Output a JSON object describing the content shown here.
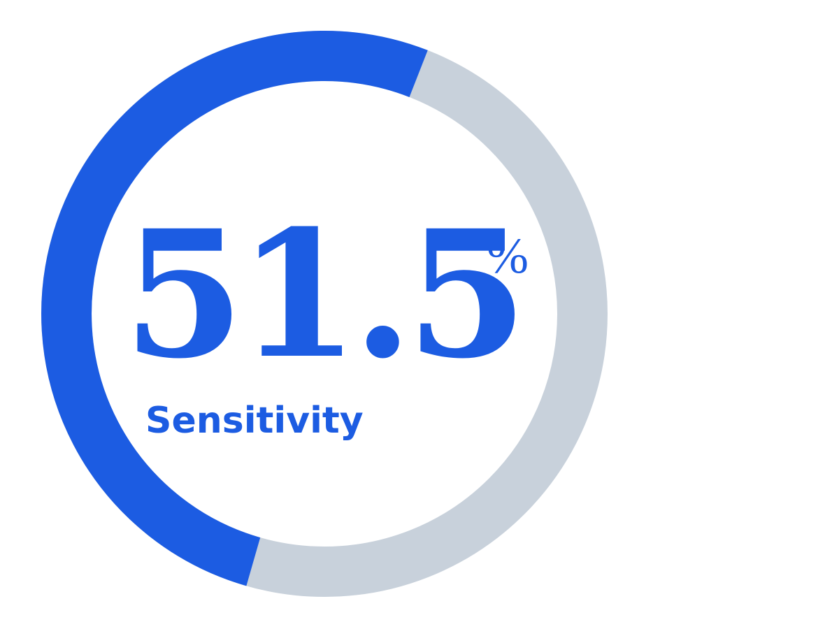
{
  "chart_data": {
    "type": "pie",
    "categories": [
      "Sensitivity",
      ""
    ],
    "values": [
      51.5,
      48.5
    ],
    "title": "",
    "center_value": "51.5",
    "center_unit": "%",
    "center_label": "Sensitivity",
    "start_angle": "bottom-center",
    "direction": "clockwise",
    "colors": {
      "filled": "#1c5ce2",
      "remainder": "#c8d1db",
      "text": "#1c5ce2",
      "background": "#ffffff"
    }
  }
}
